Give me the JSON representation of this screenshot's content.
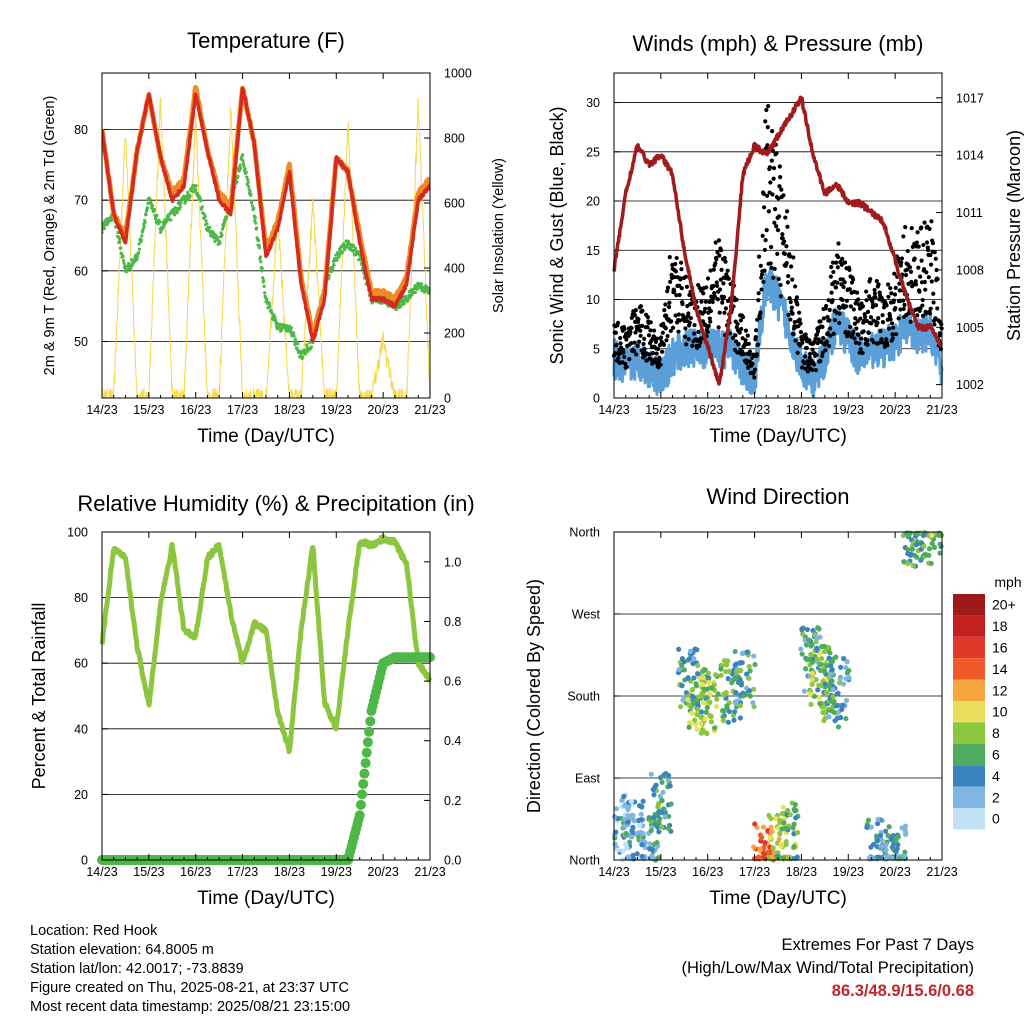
{
  "colors": {
    "temp_2m": "#d42a1f",
    "temp_9m": "#f08a24",
    "dewpoint": "#4db848",
    "solar": "#f7d74a",
    "gust": "#000000",
    "wind": "#5a9fd8",
    "pressure": "#a01c1c",
    "rh": "#8cc63f",
    "rain": "#4db848",
    "extremes_text": "#c0272d"
  },
  "x_ticks": [
    "14/23",
    "15/23",
    "16/23",
    "17/23",
    "18/23",
    "19/23",
    "20/23",
    "21/23"
  ],
  "x_label": "Time (Day/UTC)",
  "panels": {
    "temperature": {
      "title": "Temperature (F)",
      "y_left_label": "2m & 9m T (Red, Orange) & 2m Td (Green)",
      "y_right_label": "Solar Insolation (Yellow)",
      "y_left_ticks": [
        "50",
        "60",
        "70",
        "80"
      ],
      "y_right_ticks": [
        "0",
        "200",
        "400",
        "600",
        "800",
        "1000"
      ]
    },
    "winds": {
      "title": "Winds (mph) & Pressure (mb)",
      "y_left_label": "Sonic Wind & Gust (Blue, Black)",
      "y_right_label": "Station Pressure (Maroon)",
      "y_left_ticks": [
        "0",
        "5",
        "10",
        "15",
        "20",
        "25",
        "30"
      ],
      "y_right_ticks": [
        "1002",
        "1005",
        "1008",
        "1011",
        "1014",
        "1017"
      ]
    },
    "humidity": {
      "title": "Relative Humidity (%) & Precipitation (in)",
      "y_left_label": "Percent & Total Rainfall",
      "y_left_ticks": [
        "0",
        "20",
        "40",
        "60",
        "80",
        "100"
      ],
      "y_right_ticks": [
        "0.0",
        "0.2",
        "0.4",
        "0.6",
        "0.8",
        "1.0"
      ]
    },
    "direction": {
      "title": "Wind Direction",
      "y_left_label": "Direction (Colored By Speed)",
      "y_ticks": [
        "North",
        "East",
        "South",
        "West",
        "North"
      ],
      "legend_title": "mph",
      "legend_labels": [
        "20+",
        "18",
        "16",
        "14",
        "12",
        "10",
        "8",
        "6",
        "4",
        "2",
        "0"
      ],
      "legend_colors": [
        "#9e1a1a",
        "#c4201f",
        "#e0392a",
        "#f05a2a",
        "#f7a540",
        "#e8df5a",
        "#8cc63f",
        "#4daa5f",
        "#3a82c0",
        "#7fb5e0",
        "#c2e1f5"
      ]
    }
  },
  "info": {
    "location": "Location: Red Hook",
    "elevation": "Station elevation: 64.8005 m",
    "latlon": "Station lat/lon: 42.0017; -73.8839",
    "created": "Figure created on Thu, 2025-08-21, at 23:37 UTC",
    "recent": "Most recent data timestamp: 2025/08/21 23:15:00"
  },
  "extremes": {
    "line1": "Extremes For Past 7 Days",
    "line2": "(High/Low/Max Wind/Total Precipitation)",
    "values": "86.3/48.9/15.6/0.68"
  },
  "chart_data": [
    {
      "type": "line",
      "title": "Temperature (F)",
      "xlabel": "Time (Day/UTC)",
      "ylabel": "2m & 9m T (Red, Orange) & 2m Td (Green)",
      "ylim": [
        42,
        88
      ],
      "y2label": "Solar Insolation (Yellow)",
      "y2lim": [
        0,
        1000
      ],
      "x": [
        0,
        0.25,
        0.5,
        0.75,
        1,
        1.25,
        1.5,
        1.75,
        2,
        2.25,
        2.5,
        2.75,
        3,
        3.25,
        3.5,
        3.75,
        4,
        4.25,
        4.5,
        4.75,
        5,
        5.25,
        5.5,
        5.75,
        6,
        6.25,
        6.5,
        6.75,
        7
      ],
      "series": [
        {
          "name": "2m T (Red)",
          "values": [
            80,
            68,
            64,
            77,
            85,
            76,
            70,
            72,
            85,
            77,
            70,
            68,
            86,
            78,
            62,
            66,
            74,
            58,
            50,
            56,
            76,
            74,
            64,
            56,
            56,
            55,
            58,
            70,
            72
          ]
        },
        {
          "name": "9m T (Orange)",
          "values": [
            80,
            68,
            65,
            77,
            85,
            76,
            71,
            73,
            86,
            77,
            71,
            69,
            86,
            78,
            63,
            67,
            75,
            59,
            51,
            57,
            76,
            74,
            65,
            57,
            57,
            56,
            59,
            71,
            73
          ]
        },
        {
          "name": "2m Td (Green)",
          "values": [
            66,
            68,
            60,
            62,
            70,
            66,
            68,
            70,
            72,
            66,
            64,
            70,
            76,
            68,
            56,
            52,
            52,
            48,
            50,
            58,
            62,
            64,
            62,
            56,
            56,
            55,
            56,
            58,
            57
          ]
        },
        {
          "name": "Solar Insolation (Yellow)",
          "axis": "right",
          "values": [
            0,
            0,
            830,
            0,
            0,
            930,
            0,
            0,
            870,
            0,
            0,
            900,
            0,
            0,
            0,
            560,
            0,
            0,
            600,
            0,
            0,
            850,
            0,
            0,
            180,
            0,
            0,
            920,
            0
          ]
        }
      ]
    },
    {
      "type": "line",
      "title": "Winds (mph) & Pressure (mb)",
      "xlabel": "Time (Day/UTC)",
      "ylabel": "Sonic Wind & Gust (Blue, Black)",
      "ylim": [
        0,
        33
      ],
      "y2label": "Station Pressure (Maroon)",
      "y2lim": [
        1001.3,
        1018.3
      ],
      "x": [
        0,
        0.25,
        0.5,
        0.75,
        1,
        1.25,
        1.5,
        1.75,
        2,
        2.25,
        2.5,
        2.75,
        3,
        3.25,
        3.5,
        3.75,
        4,
        4.25,
        4.5,
        4.75,
        5,
        5.25,
        5.5,
        5.75,
        6,
        6.25,
        6.5,
        6.75,
        7
      ],
      "series": [
        {
          "name": "Sonic Wind (Blue)",
          "values": [
            4,
            3,
            4,
            3,
            2,
            4,
            5,
            5,
            5,
            5,
            5,
            3,
            2,
            12,
            10,
            7,
            3,
            2,
            4,
            8,
            6,
            4,
            5,
            5,
            6,
            7,
            6,
            7,
            3
          ]
        },
        {
          "name": "Gust (Black)",
          "values": [
            6,
            5,
            7,
            6,
            5,
            12,
            9,
            8,
            10,
            12,
            9,
            6,
            3,
            22,
            18,
            13,
            5,
            4,
            7,
            12,
            10,
            7,
            9,
            8,
            10,
            13,
            12,
            14,
            6
          ]
        },
        {
          "name": "Station Pressure (Maroon)",
          "axis": "right",
          "values": [
            1008,
            1012,
            1014.5,
            1013.5,
            1014,
            1013,
            1009,
            1006,
            1004,
            1002,
            1006,
            1013,
            1014.5,
            1014,
            1015,
            1016,
            1017,
            1014,
            1012,
            1012.5,
            1011.5,
            1011.5,
            1011,
            1010.5,
            1008.5,
            1006.5,
            1005,
            1005,
            1004
          ]
        }
      ]
    },
    {
      "type": "line",
      "title": "Relative Humidity (%) & Precipitation (in)",
      "xlabel": "Time (Day/UTC)",
      "ylabel": "Percent & Total Rainfall",
      "ylim": [
        0,
        100
      ],
      "y2lim": [
        0,
        1.1
      ],
      "x": [
        0,
        0.25,
        0.5,
        0.75,
        1,
        1.25,
        1.5,
        1.75,
        2,
        2.25,
        2.5,
        2.75,
        3,
        3.25,
        3.5,
        3.75,
        4,
        4.25,
        4.5,
        4.75,
        5,
        5.25,
        5.5,
        5.75,
        6,
        6.25,
        6.5,
        6.75,
        7
      ],
      "series": [
        {
          "name": "Relative Humidity",
          "values": [
            66,
            95,
            92,
            65,
            47,
            78,
            96,
            70,
            68,
            92,
            96,
            75,
            60,
            72,
            70,
            45,
            33,
            70,
            96,
            48,
            40,
            70,
            97,
            96,
            98,
            97,
            90,
            60,
            55
          ]
        },
        {
          "name": "Total Rainfall",
          "axis": "right",
          "values": [
            0,
            0,
            0,
            0,
            0,
            0,
            0,
            0,
            0,
            0,
            0,
            0,
            0,
            0,
            0,
            0,
            0,
            0,
            0,
            0,
            0,
            0,
            0.15,
            0.5,
            0.66,
            0.68,
            0.68,
            0.68,
            0.68
          ]
        }
      ]
    },
    {
      "type": "scatter",
      "title": "Wind Direction",
      "xlabel": "Time (Day/UTC)",
      "ylabel": "Direction (Colored By Speed)",
      "yticks": [
        "North",
        "East",
        "South",
        "West",
        "North"
      ],
      "ylim": [
        0,
        360
      ],
      "colorbar_label": "mph",
      "colorbar_range": [
        0,
        20
      ],
      "x": [
        0.2,
        0.4,
        0.8,
        1.0,
        1.6,
        1.8,
        2.0,
        2.5,
        2.8,
        3.2,
        3.5,
        3.7,
        4.2,
        4.4,
        4.6,
        4.8,
        5.6,
        6.0,
        6.4,
        6.8
      ],
      "series": [
        {
          "name": "direction",
          "values": [
            40,
            30,
            20,
            60,
            200,
            180,
            170,
            185,
            195,
            8,
            15,
            30,
            220,
            200,
            180,
            190,
            10,
            5,
            355,
            358
          ]
        },
        {
          "name": "speed",
          "values": [
            3,
            3,
            4,
            5,
            5,
            7,
            8,
            6,
            5,
            14,
            10,
            7,
            5,
            8,
            6,
            4,
            4,
            4,
            6,
            7
          ]
        }
      ]
    }
  ]
}
